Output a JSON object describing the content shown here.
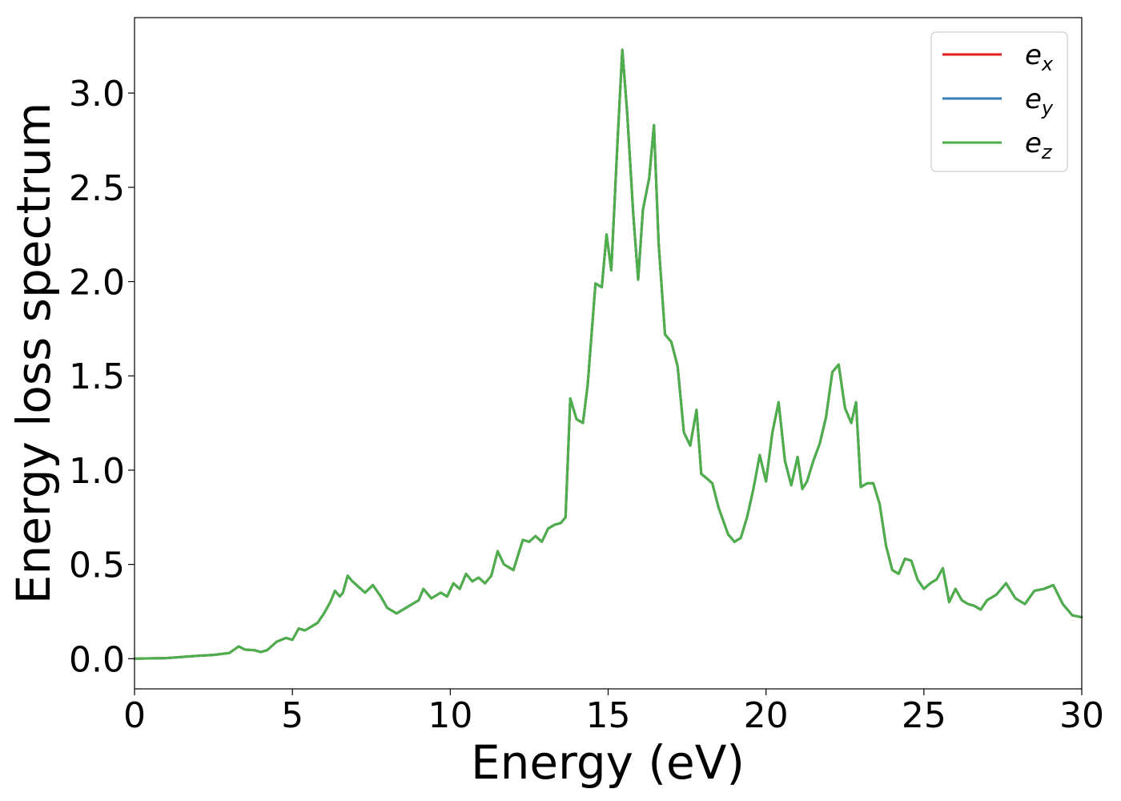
{
  "chart_data": {
    "type": "line",
    "title": "",
    "xlabel": "Energy (eV)",
    "ylabel": "Energy loss spectrum",
    "xlim": [
      0,
      30
    ],
    "ylim": [
      -0.16,
      3.4
    ],
    "xticks": [
      0,
      5,
      10,
      15,
      20,
      25,
      30
    ],
    "xtick_labels": [
      "0",
      "5",
      "10",
      "15",
      "20",
      "25",
      "30"
    ],
    "yticks": [
      0.0,
      0.5,
      1.0,
      1.5,
      2.0,
      2.5,
      3.0
    ],
    "ytick_labels": [
      "0.0",
      "0.5",
      "1.0",
      "1.5",
      "2.0",
      "2.5",
      "3.0"
    ],
    "grid": false,
    "legend_position": "top-right",
    "x": [
      0.0,
      1.0,
      2.0,
      2.5,
      3.0,
      3.3,
      3.5,
      3.8,
      4.0,
      4.2,
      4.5,
      4.8,
      5.0,
      5.2,
      5.4,
      5.6,
      5.8,
      6.0,
      6.2,
      6.35,
      6.5,
      6.6,
      6.75,
      6.9,
      7.1,
      7.3,
      7.55,
      7.8,
      8.0,
      8.3,
      8.5,
      8.8,
      9.0,
      9.15,
      9.4,
      9.7,
      9.9,
      10.1,
      10.3,
      10.5,
      10.7,
      10.9,
      11.1,
      11.3,
      11.5,
      11.7,
      12.0,
      12.3,
      12.5,
      12.7,
      12.9,
      13.1,
      13.3,
      13.5,
      13.65,
      13.8,
      14.0,
      14.2,
      14.35,
      14.6,
      14.8,
      14.95,
      15.1,
      15.3,
      15.45,
      15.6,
      15.8,
      15.95,
      16.1,
      16.3,
      16.45,
      16.6,
      16.8,
      17.0,
      17.2,
      17.4,
      17.6,
      17.8,
      17.95,
      18.1,
      18.3,
      18.5,
      18.8,
      19.0,
      19.2,
      19.4,
      19.6,
      19.8,
      20.0,
      20.2,
      20.4,
      20.6,
      20.8,
      21.0,
      21.15,
      21.3,
      21.5,
      21.7,
      21.9,
      22.1,
      22.3,
      22.5,
      22.7,
      22.85,
      23.0,
      23.2,
      23.4,
      23.6,
      23.8,
      24.0,
      24.2,
      24.4,
      24.6,
      24.8,
      25.0,
      25.2,
      25.4,
      25.6,
      25.8,
      26.0,
      26.2,
      26.4,
      26.6,
      26.8,
      27.0,
      27.3,
      27.6,
      27.9,
      28.2,
      28.5,
      28.8,
      29.1,
      29.4,
      29.7,
      30.0
    ],
    "series": [
      {
        "name": "e_x",
        "color": "#e41a1c",
        "values": [
          0.0,
          0.003,
          0.015,
          0.02,
          0.03,
          0.065,
          0.048,
          0.045,
          0.035,
          0.045,
          0.09,
          0.11,
          0.1,
          0.16,
          0.15,
          0.17,
          0.19,
          0.24,
          0.3,
          0.36,
          0.33,
          0.35,
          0.44,
          0.41,
          0.38,
          0.35,
          0.39,
          0.33,
          0.27,
          0.24,
          0.26,
          0.29,
          0.31,
          0.37,
          0.32,
          0.35,
          0.33,
          0.4,
          0.37,
          0.45,
          0.41,
          0.43,
          0.4,
          0.44,
          0.57,
          0.5,
          0.47,
          0.63,
          0.62,
          0.65,
          0.62,
          0.69,
          0.71,
          0.72,
          0.75,
          1.38,
          1.27,
          1.25,
          1.45,
          1.99,
          1.97,
          2.25,
          2.06,
          2.75,
          3.23,
          2.9,
          2.35,
          2.01,
          2.38,
          2.55,
          2.83,
          2.2,
          1.72,
          1.68,
          1.55,
          1.2,
          1.13,
          1.32,
          0.98,
          0.96,
          0.93,
          0.8,
          0.66,
          0.62,
          0.64,
          0.75,
          0.9,
          1.08,
          0.94,
          1.2,
          1.36,
          1.05,
          0.92,
          1.07,
          0.9,
          0.94,
          1.05,
          1.14,
          1.28,
          1.52,
          1.56,
          1.33,
          1.25,
          1.36,
          0.91,
          0.93,
          0.93,
          0.82,
          0.6,
          0.47,
          0.45,
          0.53,
          0.52,
          0.42,
          0.37,
          0.4,
          0.42,
          0.48,
          0.3,
          0.37,
          0.31,
          0.29,
          0.28,
          0.26,
          0.31,
          0.34,
          0.4,
          0.32,
          0.29,
          0.36,
          0.37,
          0.39,
          0.29,
          0.23,
          0.22
        ]
      },
      {
        "name": "e_y",
        "color": "#377eb8",
        "values": [
          0.0,
          0.003,
          0.015,
          0.02,
          0.03,
          0.065,
          0.048,
          0.045,
          0.035,
          0.045,
          0.09,
          0.11,
          0.1,
          0.16,
          0.15,
          0.17,
          0.19,
          0.24,
          0.3,
          0.36,
          0.33,
          0.35,
          0.44,
          0.41,
          0.38,
          0.35,
          0.39,
          0.33,
          0.27,
          0.24,
          0.26,
          0.29,
          0.31,
          0.37,
          0.32,
          0.35,
          0.33,
          0.4,
          0.37,
          0.45,
          0.41,
          0.43,
          0.4,
          0.44,
          0.57,
          0.5,
          0.47,
          0.63,
          0.62,
          0.65,
          0.62,
          0.69,
          0.71,
          0.72,
          0.75,
          1.38,
          1.27,
          1.25,
          1.45,
          1.99,
          1.97,
          2.25,
          2.06,
          2.75,
          3.23,
          2.9,
          2.35,
          2.01,
          2.38,
          2.55,
          2.83,
          2.2,
          1.72,
          1.68,
          1.55,
          1.2,
          1.13,
          1.32,
          0.98,
          0.96,
          0.93,
          0.8,
          0.66,
          0.62,
          0.64,
          0.75,
          0.9,
          1.08,
          0.94,
          1.2,
          1.36,
          1.05,
          0.92,
          1.07,
          0.9,
          0.94,
          1.05,
          1.14,
          1.28,
          1.52,
          1.56,
          1.33,
          1.25,
          1.36,
          0.91,
          0.93,
          0.93,
          0.82,
          0.6,
          0.47,
          0.45,
          0.53,
          0.52,
          0.42,
          0.37,
          0.4,
          0.42,
          0.48,
          0.3,
          0.37,
          0.31,
          0.29,
          0.28,
          0.26,
          0.31,
          0.34,
          0.4,
          0.32,
          0.29,
          0.36,
          0.37,
          0.39,
          0.29,
          0.23,
          0.22
        ]
      },
      {
        "name": "e_z",
        "color": "#4daf4a",
        "values": [
          0.0,
          0.003,
          0.015,
          0.02,
          0.03,
          0.065,
          0.048,
          0.045,
          0.035,
          0.045,
          0.09,
          0.11,
          0.1,
          0.16,
          0.15,
          0.17,
          0.19,
          0.24,
          0.3,
          0.36,
          0.33,
          0.35,
          0.44,
          0.41,
          0.38,
          0.35,
          0.39,
          0.33,
          0.27,
          0.24,
          0.26,
          0.29,
          0.31,
          0.37,
          0.32,
          0.35,
          0.33,
          0.4,
          0.37,
          0.45,
          0.41,
          0.43,
          0.4,
          0.44,
          0.57,
          0.5,
          0.47,
          0.63,
          0.62,
          0.65,
          0.62,
          0.69,
          0.71,
          0.72,
          0.75,
          1.38,
          1.27,
          1.25,
          1.45,
          1.99,
          1.97,
          2.25,
          2.06,
          2.75,
          3.23,
          2.9,
          2.35,
          2.01,
          2.38,
          2.55,
          2.83,
          2.2,
          1.72,
          1.68,
          1.55,
          1.2,
          1.13,
          1.32,
          0.98,
          0.96,
          0.93,
          0.8,
          0.66,
          0.62,
          0.64,
          0.75,
          0.9,
          1.08,
          0.94,
          1.2,
          1.36,
          1.05,
          0.92,
          1.07,
          0.9,
          0.94,
          1.05,
          1.14,
          1.28,
          1.52,
          1.56,
          1.33,
          1.25,
          1.36,
          0.91,
          0.93,
          0.93,
          0.82,
          0.6,
          0.47,
          0.45,
          0.53,
          0.52,
          0.42,
          0.37,
          0.4,
          0.42,
          0.48,
          0.3,
          0.37,
          0.31,
          0.29,
          0.28,
          0.26,
          0.31,
          0.34,
          0.4,
          0.32,
          0.29,
          0.36,
          0.37,
          0.39,
          0.29,
          0.23,
          0.22
        ]
      }
    ],
    "legend": [
      {
        "base": "e",
        "sub": "x"
      },
      {
        "base": "e",
        "sub": "y"
      },
      {
        "base": "e",
        "sub": "z"
      }
    ]
  }
}
